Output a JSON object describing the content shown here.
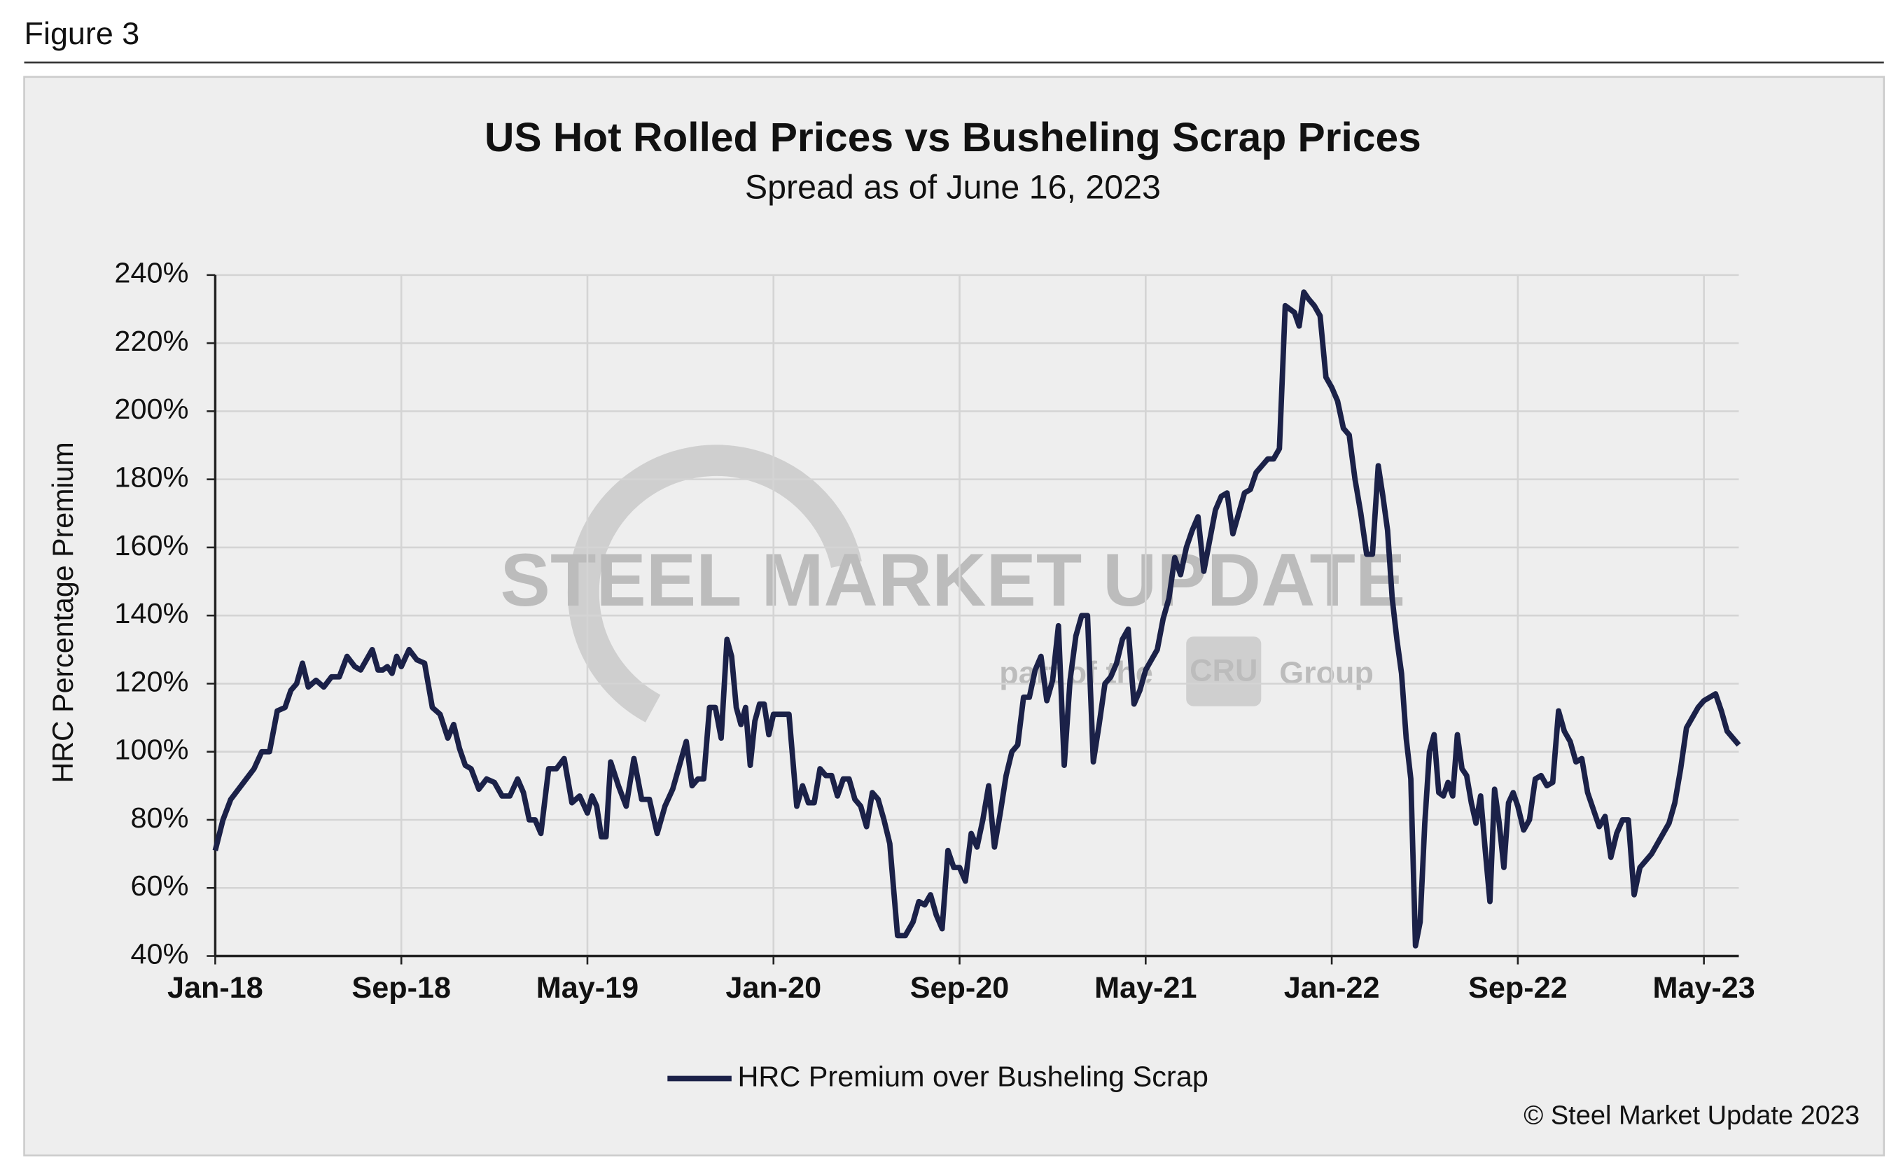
{
  "figure_label": "Figure 3",
  "chart_data": {
    "type": "line",
    "title": "US Hot Rolled Prices vs Busheling Scrap Prices",
    "subtitle": "Spread as of June 16, 2023",
    "y_label": "HRC Percentage Premium",
    "source": "© Steel Market Update 2023",
    "watermark": {
      "brand": "STEEL MARKET UPDATE",
      "part_of": "part of the",
      "logo": "CRU",
      "group": "Group"
    },
    "grid": true,
    "legend": "bottom",
    "ylim": [
      40,
      240
    ],
    "yticks": [
      {
        "value": 40,
        "label": "40%"
      },
      {
        "value": 60,
        "label": "60%"
      },
      {
        "value": 80,
        "label": "80%"
      },
      {
        "value": 100,
        "label": "100%"
      },
      {
        "value": 120,
        "label": "120%"
      },
      {
        "value": 140,
        "label": "140%"
      },
      {
        "value": 160,
        "label": "160%"
      },
      {
        "value": 180,
        "label": "180%"
      },
      {
        "value": 200,
        "label": "200%"
      },
      {
        "value": 220,
        "label": "220%"
      },
      {
        "value": 240,
        "label": "240%"
      }
    ],
    "xlim": [
      "2018-01",
      "2023-06"
    ],
    "xticks": [
      {
        "value": "2018-01",
        "label": "Jan-18"
      },
      {
        "value": "2018-09",
        "label": "Sep-18"
      },
      {
        "value": "2019-05",
        "label": "May-19"
      },
      {
        "value": "2020-01",
        "label": "Jan-20"
      },
      {
        "value": "2020-09",
        "label": "Sep-20"
      },
      {
        "value": "2021-05",
        "label": "May-21"
      },
      {
        "value": "2022-01",
        "label": "Jan-22"
      },
      {
        "value": "2022-09",
        "label": "Sep-22"
      },
      {
        "value": "2023-05",
        "label": "May-23"
      }
    ],
    "x": [
      "2018-01",
      "2018-01",
      "2018-01",
      "2018-02",
      "2018-02",
      "2018-02",
      "2018-03",
      "2018-03",
      "2018-03",
      "2018-04",
      "2018-04",
      "2018-04",
      "2018-04",
      "2018-05",
      "2018-05",
      "2018-05",
      "2018-06",
      "2018-06",
      "2018-06",
      "2018-07",
      "2018-07",
      "2018-07",
      "2018-07",
      "2018-08",
      "2018-08",
      "2018-08",
      "2018-08",
      "2018-08",
      "2018-09",
      "2018-09",
      "2018-09",
      "2018-10",
      "2018-10",
      "2018-10",
      "2018-11",
      "2018-11",
      "2018-11",
      "2018-11",
      "2018-12",
      "2018-12",
      "2018-12",
      "2019-01",
      "2019-01",
      "2019-01",
      "2019-02",
      "2019-02",
      "2019-02",
      "2019-02",
      "2019-03",
      "2019-03",
      "2019-03",
      "2019-04",
      "2019-04",
      "2019-04",
      "2019-05",
      "2019-05",
      "2019-05",
      "2019-05",
      "2019-05",
      "2019-06",
      "2019-06",
      "2019-06",
      "2019-07",
      "2019-07",
      "2019-07",
      "2019-08",
      "2019-08",
      "2019-08",
      "2019-09",
      "2019-09",
      "2019-09",
      "2019-09",
      "2019-10",
      "2019-10",
      "2019-10",
      "2019-10",
      "2019-11",
      "2019-11",
      "2019-11",
      "2019-11",
      "2019-11",
      "2019-12",
      "2019-12",
      "2019-12",
      "2019-12",
      "2019-12",
      "2020-01",
      "2020-01",
      "2020-01",
      "2020-02",
      "2020-02",
      "2020-02",
      "2020-02",
      "2020-03",
      "2020-03",
      "2020-03",
      "2020-03",
      "2020-04",
      "2020-04",
      "2020-04",
      "2020-04",
      "2020-05",
      "2020-05",
      "2020-05",
      "2020-05",
      "2020-06",
      "2020-06",
      "2020-06",
      "2020-07",
      "2020-07",
      "2020-07",
      "2020-07",
      "2020-08",
      "2020-08",
      "2020-08",
      "2020-08",
      "2020-09",
      "2020-09",
      "2020-09",
      "2020-09",
      "2020-10",
      "2020-10",
      "2020-10",
      "2020-10",
      "2020-11",
      "2020-11",
      "2020-11",
      "2020-11",
      "2020-12",
      "2020-12",
      "2020-12",
      "2020-12",
      "2021-01",
      "2021-01",
      "2021-01",
      "2021-01",
      "2021-02",
      "2021-02",
      "2021-02",
      "2021-02",
      "2021-03",
      "2021-03",
      "2021-03",
      "2021-03",
      "2021-04",
      "2021-04",
      "2021-04",
      "2021-04",
      "2021-05",
      "2021-05",
      "2021-05",
      "2021-05",
      "2021-06",
      "2021-06",
      "2021-06",
      "2021-06",
      "2021-07",
      "2021-07",
      "2021-07",
      "2021-07",
      "2021-08",
      "2021-08",
      "2021-08",
      "2021-08",
      "2021-09",
      "2021-09",
      "2021-09",
      "2021-09",
      "2021-10",
      "2021-10",
      "2021-10",
      "2021-10",
      "2021-11",
      "2021-11",
      "2021-11",
      "2021-11",
      "2021-11",
      "2021-12",
      "2021-12",
      "2021-12",
      "2021-12",
      "2022-01",
      "2022-01",
      "2022-01",
      "2022-01",
      "2022-02",
      "2022-02",
      "2022-02",
      "2022-02",
      "2022-03",
      "2022-03",
      "2022-03",
      "2022-03",
      "2022-03",
      "2022-04",
      "2022-04",
      "2022-04",
      "2022-04",
      "2022-04",
      "2022-05",
      "2022-05",
      "2022-05",
      "2022-05",
      "2022-05",
      "2022-06",
      "2022-06",
      "2022-06",
      "2022-06",
      "2022-06",
      "2022-07",
      "2022-07",
      "2022-07",
      "2022-07",
      "2022-07",
      "2022-08",
      "2022-08",
      "2022-08",
      "2022-08",
      "2022-08",
      "2022-09",
      "2022-09",
      "2022-09",
      "2022-09",
      "2022-10",
      "2022-10",
      "2022-10",
      "2022-10",
      "2022-11",
      "2022-11",
      "2022-11",
      "2022-11",
      "2022-12",
      "2022-12",
      "2022-12",
      "2022-12",
      "2023-01",
      "2023-01",
      "2023-01",
      "2023-01",
      "2023-02",
      "2023-02",
      "2023-02",
      "2023-02",
      "2023-03",
      "2023-03",
      "2023-03",
      "2023-03",
      "2023-04",
      "2023-04",
      "2023-04",
      "2023-04",
      "2023-05",
      "2023-05",
      "2023-05",
      "2023-05",
      "2023-06",
      "2023-06"
    ],
    "series": [
      {
        "name": "HRC Premium over Busheling Scrap",
        "color": "#1b2148",
        "values": [
          71,
          80,
          86,
          89,
          92,
          95,
          100,
          100,
          112,
          113,
          118,
          120,
          126,
          119,
          121,
          119,
          122,
          122,
          128,
          125,
          124,
          127,
          130,
          124,
          124,
          125,
          123,
          128,
          125,
          130,
          127,
          126,
          113,
          111,
          104,
          108,
          101,
          96,
          95,
          89,
          92,
          91,
          87,
          87,
          92,
          88,
          80,
          80,
          76,
          95,
          95,
          98,
          85,
          87,
          82,
          87,
          84,
          75,
          75,
          97,
          90,
          84,
          98,
          86,
          86,
          76,
          84,
          89,
          97,
          103,
          90,
          92,
          92,
          113,
          113,
          104,
          133,
          128,
          113,
          108,
          113,
          96,
          109,
          114,
          114,
          105,
          111,
          111,
          111,
          84,
          90,
          85,
          85,
          95,
          93,
          93,
          87,
          92,
          92,
          86,
          84,
          78,
          88,
          86,
          80,
          73,
          46,
          46,
          50,
          56,
          55,
          58,
          52,
          48,
          71,
          66,
          66,
          62,
          76,
          72,
          80,
          90,
          72,
          82,
          93,
          100,
          102,
          116,
          116,
          124,
          128,
          115,
          121,
          137,
          96,
          121,
          134,
          140,
          140,
          97,
          108,
          120,
          122,
          126,
          133,
          136,
          114,
          118,
          124,
          127,
          130,
          139,
          145,
          157,
          152,
          160,
          165,
          169,
          153,
          162,
          171,
          175,
          176,
          164,
          170,
          176,
          177,
          182,
          184,
          186,
          186,
          189,
          231,
          230,
          229,
          225,
          235,
          233,
          231,
          228,
          210,
          207,
          203,
          195,
          193,
          180,
          170,
          158,
          158,
          184,
          175,
          165,
          145,
          133,
          123,
          104,
          92,
          43,
          50,
          79,
          100,
          105,
          88,
          87,
          91,
          87,
          105,
          95,
          93,
          85,
          79,
          87,
          71,
          56,
          89,
          79,
          66,
          85,
          88,
          84,
          77,
          80,
          92,
          93,
          90,
          91,
          112,
          106,
          103,
          97,
          98,
          88,
          83,
          78,
          81,
          69,
          76,
          80,
          80,
          58,
          66,
          68,
          70,
          73,
          76,
          79,
          85,
          95,
          107,
          110,
          113,
          115,
          116,
          117,
          112,
          106,
          102
        ]
      }
    ]
  }
}
